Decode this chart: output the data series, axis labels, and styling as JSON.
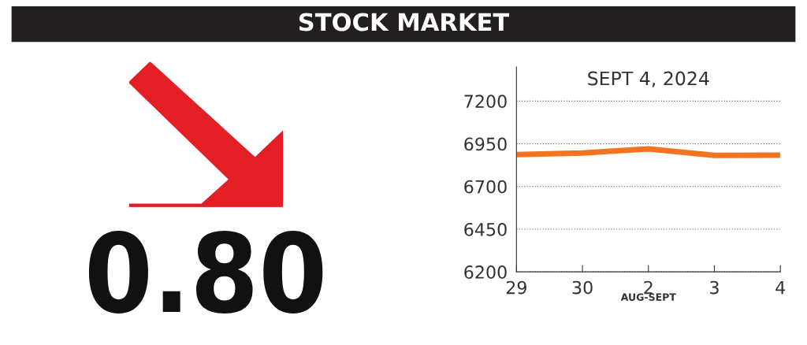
{
  "chart_data": {
    "type": "line",
    "title": "STOCK MARKET",
    "subtitle": "SEPT 4, 2024",
    "xlabel": "AUG-SEPT",
    "categories": [
      "29",
      "30",
      "2",
      "3",
      "4"
    ],
    "series": [
      {
        "color": "#f47321",
        "values": [
          6887,
          6896,
          6920,
          6882,
          6883
        ]
      }
    ],
    "ylim": [
      6200,
      7400
    ],
    "yticks": [
      6200,
      6450,
      6700,
      6950,
      7200
    ],
    "grid": "y",
    "annotations": [
      "0.80"
    ]
  }
}
